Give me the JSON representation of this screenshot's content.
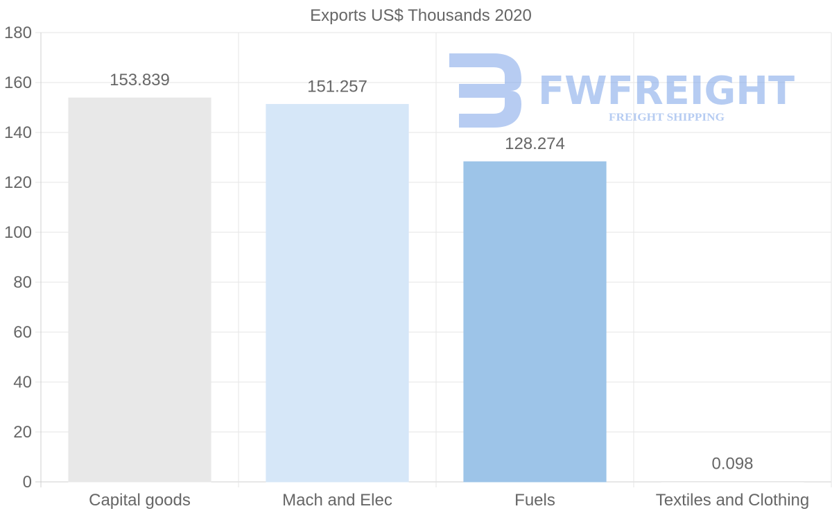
{
  "chart_data": {
    "type": "bar",
    "title": "Exports US$ Thousands 2020",
    "categories": [
      "Capital goods",
      "Mach and Elec",
      "Fuels",
      "Textiles and Clothing"
    ],
    "values": [
      153.839,
      151.257,
      128.274,
      0.098
    ],
    "value_labels": [
      "153.839",
      "151.257",
      "128.274",
      "0.098"
    ],
    "bar_colors": [
      "#e8e8e8",
      "#d6e7f8",
      "#9dc4e8",
      "#e0e0e0"
    ],
    "ylim": [
      0,
      180
    ],
    "yticks": [
      0,
      20,
      40,
      60,
      80,
      100,
      120,
      140,
      160,
      180
    ],
    "xlabel": "",
    "ylabel": "",
    "grid": true,
    "legend": "none"
  },
  "watermark": {
    "brand": "FWFREIGHT",
    "tagline": "FREIGHT SHIPPING",
    "color": "#6f9ae6"
  }
}
